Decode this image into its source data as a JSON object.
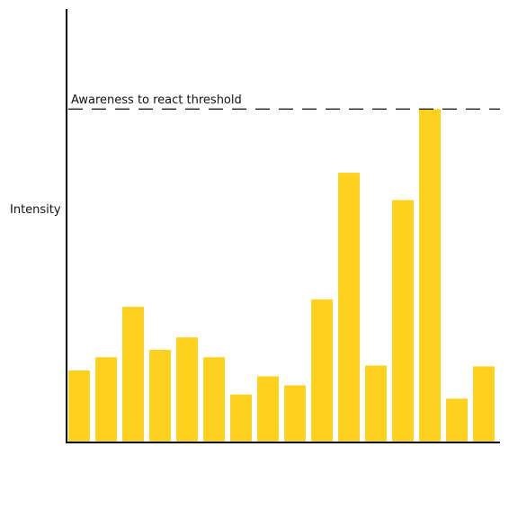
{
  "chart_data": {
    "type": "bar",
    "ylabel": "Intensity",
    "xlabel": "",
    "ylim": [
      0,
      400
    ],
    "bar_color": "#FFD11F",
    "values": [
      87,
      103,
      164,
      112,
      127,
      103,
      58,
      80,
      69,
      173,
      326,
      93,
      293,
      403,
      53,
      92
    ],
    "threshold": {
      "value": 403,
      "label": "Awareness to react threshold",
      "style": "dashed"
    }
  }
}
